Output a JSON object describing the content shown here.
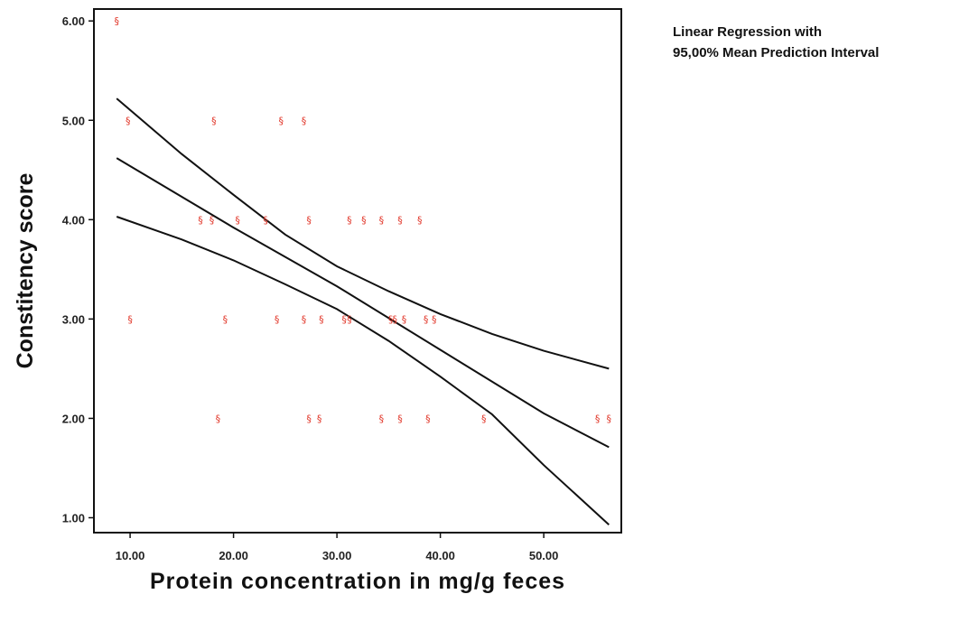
{
  "chart_data": {
    "type": "scatter",
    "title": "",
    "xlabel": "Protein concentration in mg/g feces",
    "ylabel": "Constitency score",
    "xlim": [
      6.5,
      57.5
    ],
    "ylim": [
      0.85,
      6.12
    ],
    "xticks": [
      10,
      20,
      30,
      40,
      50
    ],
    "xtick_labels": [
      "10.00",
      "20.00",
      "30.00",
      "40.00",
      "50.00"
    ],
    "yticks": [
      1,
      2,
      3,
      4,
      5,
      6
    ],
    "ytick_labels": [
      "1.00",
      "2.00",
      "3.00",
      "4.00",
      "5.00",
      "6.00"
    ],
    "legend": {
      "position": "top-right outside",
      "lines": [
        "Linear Regression with",
        "95,00% Mean Prediction Interval"
      ]
    },
    "marker_color": "#e23b2e",
    "marker_glyph": "§",
    "points": [
      {
        "x": 8.7,
        "y": 6
      },
      {
        "x": 9.8,
        "y": 5
      },
      {
        "x": 18.1,
        "y": 5
      },
      {
        "x": 24.6,
        "y": 5
      },
      {
        "x": 26.8,
        "y": 5
      },
      {
        "x": 16.8,
        "y": 4
      },
      {
        "x": 17.9,
        "y": 4
      },
      {
        "x": 20.4,
        "y": 4
      },
      {
        "x": 23.1,
        "y": 4
      },
      {
        "x": 27.3,
        "y": 4
      },
      {
        "x": 31.2,
        "y": 4
      },
      {
        "x": 32.6,
        "y": 4
      },
      {
        "x": 34.3,
        "y": 4
      },
      {
        "x": 36.1,
        "y": 4
      },
      {
        "x": 38.0,
        "y": 4
      },
      {
        "x": 10.0,
        "y": 3
      },
      {
        "x": 19.2,
        "y": 3
      },
      {
        "x": 24.2,
        "y": 3
      },
      {
        "x": 26.8,
        "y": 3
      },
      {
        "x": 28.5,
        "y": 3
      },
      {
        "x": 30.7,
        "y": 3
      },
      {
        "x": 31.2,
        "y": 3
      },
      {
        "x": 35.2,
        "y": 3
      },
      {
        "x": 35.6,
        "y": 3
      },
      {
        "x": 36.5,
        "y": 3
      },
      {
        "x": 38.6,
        "y": 3
      },
      {
        "x": 39.4,
        "y": 3
      },
      {
        "x": 18.5,
        "y": 2
      },
      {
        "x": 27.3,
        "y": 2
      },
      {
        "x": 28.3,
        "y": 2
      },
      {
        "x": 34.3,
        "y": 2
      },
      {
        "x": 36.1,
        "y": 2
      },
      {
        "x": 38.8,
        "y": 2
      },
      {
        "x": 44.2,
        "y": 2
      },
      {
        "x": 55.2,
        "y": 2
      },
      {
        "x": 56.3,
        "y": 2
      }
    ],
    "series": [
      {
        "type": "line",
        "x": [
          8.7,
          20,
          30,
          40,
          50,
          56.3
        ],
        "y": [
          4.62,
          3.92,
          3.33,
          2.69,
          2.05,
          1.71
        ]
      },
      {
        "type": "line",
        "x": [
          8.7,
          15,
          20,
          25,
          30,
          35,
          40,
          45,
          50,
          56.3
        ],
        "y": [
          5.22,
          4.66,
          4.25,
          3.85,
          3.53,
          3.28,
          3.05,
          2.85,
          2.68,
          2.5
        ]
      },
      {
        "type": "line",
        "x": [
          8.7,
          15,
          20,
          25,
          30,
          35,
          40,
          45,
          50,
          56.3
        ],
        "y": [
          4.03,
          3.8,
          3.59,
          3.35,
          3.1,
          2.78,
          2.42,
          2.04,
          1.53,
          0.93
        ]
      }
    ]
  }
}
